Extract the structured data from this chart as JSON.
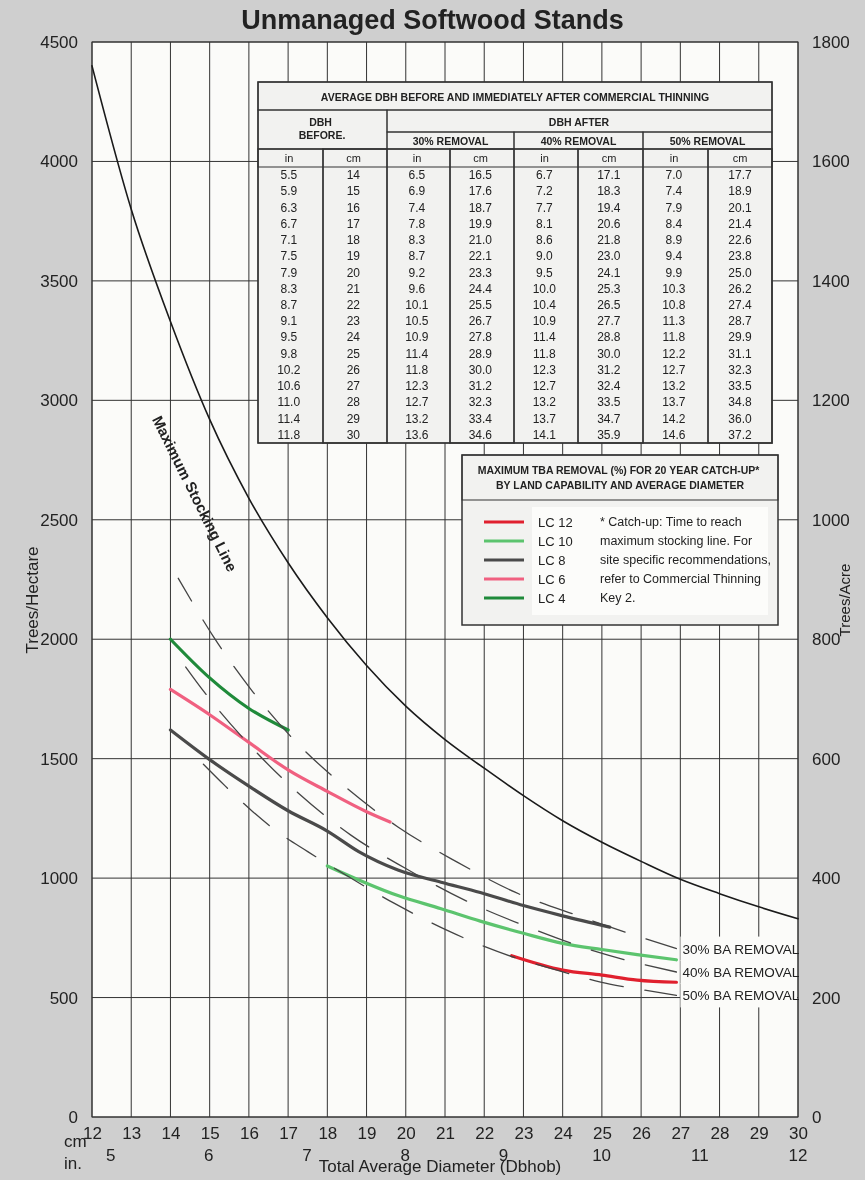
{
  "chart_data": {
    "type": "line",
    "title": "Unmanaged Softwood Stands",
    "xlabel": "Total Average Diameter (Dbhob)",
    "ylabel": "Trees/Hectare",
    "y2label": "Trees/Acre",
    "legend_title": "MAXIMUM TBA REMOVAL (%) FOR 20 YEAR CATCH-UP* BY LAND CAPABILITY AND AVERAGE DIAMETER",
    "legend": "right",
    "grid": true,
    "xlim": [
      12,
      30
    ],
    "xticks": [
      12,
      13,
      14,
      15,
      16,
      17,
      18,
      19,
      20,
      21,
      22,
      23,
      24,
      25,
      26,
      27,
      28,
      29,
      30
    ],
    "x2lim": [
      4.81,
      12
    ],
    "x2ticks": [
      5,
      6,
      7,
      8,
      9,
      10,
      11,
      12
    ],
    "ylim": [
      0,
      4500
    ],
    "yticks": [
      0,
      500,
      1000,
      1500,
      2000,
      2500,
      3000,
      3500,
      4000,
      4500
    ],
    "y2lim": [
      0,
      1800
    ],
    "y2ticks": [
      0,
      200,
      400,
      600,
      800,
      1000,
      1200,
      1400,
      1600,
      1800
    ],
    "series": [
      {
        "name": "Maximum Stocking Line",
        "color": "#1a1a1a",
        "x": [
          12,
          13,
          14,
          15,
          16,
          17,
          18,
          19,
          20,
          21,
          22,
          23,
          24,
          25,
          26,
          27,
          28,
          29,
          30
        ],
        "values": [
          4400,
          3800,
          3330,
          2920,
          2590,
          2320,
          2090,
          1890,
          1720,
          1580,
          1460,
          1345,
          1240,
          1150,
          1070,
          995,
          935,
          880,
          830
        ]
      },
      {
        "name": "LC 12",
        "color": "#e0202e",
        "x": [
          22.7,
          24,
          25,
          25.9,
          26.9
        ],
        "values": [
          675,
          615,
          594,
          573,
          564
        ]
      },
      {
        "name": "LC 10",
        "color": "#5cc46e",
        "x": [
          18,
          19.8,
          20.9,
          21.9,
          23,
          24,
          25,
          25.9,
          26.9
        ],
        "values": [
          1051,
          927,
          872,
          820,
          769,
          727,
          701,
          680,
          658
        ]
      },
      {
        "name": "LC 8",
        "color": "#4a4a4a",
        "x": [
          14,
          15,
          16,
          17,
          18,
          18.8,
          19.8,
          20.9,
          21.9,
          23,
          24,
          25.2
        ],
        "values": [
          1620,
          1496,
          1385,
          1282,
          1197,
          1111,
          1034,
          983,
          940,
          885,
          842,
          795
        ]
      },
      {
        "name": "LC 6",
        "color": "#f06080",
        "x": [
          14,
          15,
          16,
          17,
          18,
          19,
          19.6
        ],
        "values": [
          1790,
          1684,
          1568,
          1453,
          1363,
          1278,
          1235
        ]
      },
      {
        "name": "LC 4",
        "color": "#1f8a3a",
        "x": [
          14,
          15,
          16,
          17
        ],
        "values": [
          2000,
          1838,
          1710,
          1620
        ]
      },
      {
        "name": "30% BA REMOVAL",
        "color": "#444444",
        "line_style": "dashed",
        "x": [
          14.2,
          15.1,
          16.1,
          17.2,
          18.5,
          19.8,
          21.3,
          22.8,
          24.4,
          26,
          26.9
        ],
        "values": [
          2255,
          2010,
          1780,
          1570,
          1376,
          1214,
          1068,
          940,
          842,
          752,
          705
        ]
      },
      {
        "name": "40% BA REMOVAL",
        "color": "#444444",
        "line_style": "dashed",
        "x": [
          14.1,
          15,
          16,
          17.3,
          18.6,
          20,
          21.6,
          23.2,
          24.9,
          26.9
        ],
        "values": [
          1950,
          1750,
          1560,
          1350,
          1180,
          1040,
          900,
          790,
          690,
          607
        ]
      },
      {
        "name": "50% BA REMOVAL",
        "color": "#444444",
        "line_style": "dashed",
        "x": [
          14.7,
          15.4,
          16.1,
          16.7,
          17.5,
          18.5,
          19.7,
          21.1,
          22,
          24.3,
          25.2,
          26,
          26.9
        ],
        "values": [
          1500,
          1385,
          1278,
          1197,
          1111,
          1010,
          895,
          778,
          714,
          594,
          556,
          534,
          509
        ]
      }
    ],
    "annotations": [
      "AVERAGE DBH BEFORE AND IMMEDIATELY AFTER COMMERCIAL THINNING",
      "DBH BEFORE.",
      "DBH AFTER",
      "30% REMOVAL",
      "40% REMOVAL",
      "50% REMOVAL",
      "in cm in cm in cm in cm",
      "5.5 14 6.5 16.5 6.7 17.1 7.0 17.7",
      "5.9 15 6.9 17.6 7.2 18.3 7.4 18.9",
      "6.3 16 7.4 18.7 7.7 19.4 7.9 20.1",
      "6.7 17 7.8 19.9 8.1 20.6 8.4 21.4",
      "7.1 18 8.3 21.0 8.6 21.8 8.9 22.6",
      "7.5 19 8.7 22.1 9.0 23.0 9.4 23.8",
      "7.9 20 9.2 23.3 9.5 24.1 9.9 25.0",
      "8.3 21 9.6 24.4 10.0 25.3 10.3 26.2",
      "8.7 22 10.1 25.5 10.4 26.5 10.8 27.4",
      "9.1 23 10.5 26.7 10.9 27.7 11.3 28.7",
      "9.5 24 10.9 27.8 11.4 28.8 11.8 29.9",
      "9.8 25 11.4 28.9 11.8 30.0 12.2 31.1",
      "10.2 26 11.8 30.0 12.3 31.2 12.7 32.3",
      "10.6 27 12.3 31.2 12.7 32.4 13.2 33.5",
      "11.0 28 12.7 32.3 13.2 33.5 13.7 34.8",
      "11.4 29 13.2 33.4 13.7 34.7 14.2 36.0",
      "11.8 30 13.6 34.6 14.1 35.9 14.6 37.2",
      "* Catch-up: Time to reach maximum stocking line. For site specific recommendations, refer to Commercial Thinning Key 2.",
      "cm",
      "in."
    ]
  }
}
